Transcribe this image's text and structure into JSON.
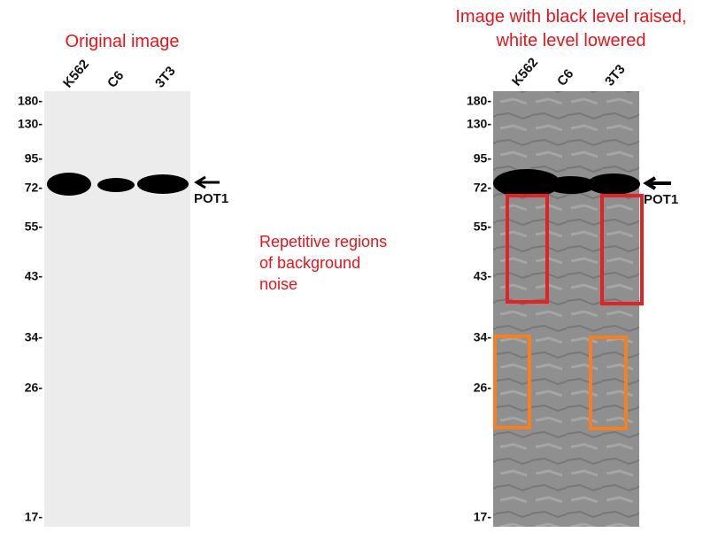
{
  "panels": [
    {
      "title": [
        "Original image"
      ],
      "lanes": [
        "K562",
        "C6",
        "3T3"
      ],
      "markers": [
        "180-",
        "130-",
        "95-",
        "72-",
        "55-",
        "43-",
        "34-",
        "26-",
        "17-"
      ],
      "band_label": "POT1"
    },
    {
      "title": [
        "Image with black level raised,",
        "white level lowered"
      ],
      "lanes": [
        "K562",
        "C6",
        "3T3"
      ],
      "markers": [
        "180-",
        "130-",
        "95-",
        "72-",
        "55-",
        "43-",
        "34-",
        "26-",
        "17-"
      ],
      "band_label": "POT1"
    }
  ],
  "note": [
    "Repetitive regions",
    "of background",
    "noise"
  ]
}
